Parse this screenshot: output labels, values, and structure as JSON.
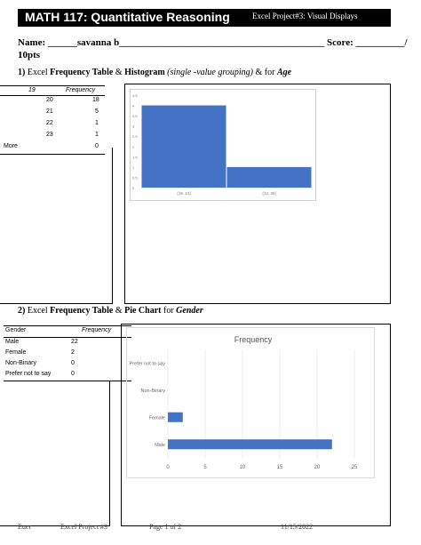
{
  "header": {
    "course": "MATH 117: Quantitative Reasoning",
    "project": "Excel Project#3: Visual Displays"
  },
  "name_line": "Name: ______savanna b__________________________________________ Score: __________/",
  "points_line": "10pts",
  "section1": {
    "number": "1)",
    "text_a": "Excel ",
    "text_b": "Frequency Table",
    "text_c": " & ",
    "text_d": "Histogram",
    "text_e": " (single -value grouping)",
    "text_f": " & for ",
    "text_g": "Age"
  },
  "table1": {
    "col1_header": "19",
    "col2_header": "Frequency",
    "rows": [
      {
        "label": "20",
        "value": "18"
      },
      {
        "label": "21",
        "value": "5"
      },
      {
        "label": "22",
        "value": "1"
      },
      {
        "label": "23",
        "value": "1"
      },
      {
        "label": "More",
        "value": "0"
      }
    ]
  },
  "section2": {
    "number": "2)",
    "text_a": "Excel ",
    "text_b": "Frequency Table",
    "text_c": " & ",
    "text_d": "Pie Chart",
    "text_e": " for ",
    "text_f": "Gender"
  },
  "table2": {
    "col1_header": "Gender",
    "col2_header": "Frequency",
    "rows": [
      {
        "label": "Male",
        "value": "22"
      },
      {
        "label": "Female",
        "value": "2"
      },
      {
        "label": "Non-Binary",
        "value": "0"
      },
      {
        "label": "Prefer not to say",
        "value": "0"
      }
    ]
  },
  "chart_data": [
    {
      "type": "bar",
      "categories": [
        "(19, 13]",
        "(13, 36]"
      ],
      "values": [
        4,
        1
      ],
      "ylim": [
        0,
        4.5
      ],
      "yticks": [
        "0",
        "0.5",
        "1",
        "1.5",
        "2",
        "2.5",
        "3",
        "3.5",
        "4",
        "4.5"
      ],
      "color": "#4472c4"
    },
    {
      "type": "bar",
      "orientation": "horizontal",
      "title": "Frequency",
      "categories": [
        "Male",
        "Female",
        "Non-Binary",
        "Prefer not to say"
      ],
      "values": [
        22,
        2,
        0,
        0
      ],
      "xlim": [
        0,
        25
      ],
      "xticks": [
        "0",
        "5",
        "10",
        "15",
        "20",
        "25"
      ],
      "color": "#4472c4"
    }
  ],
  "footer": {
    "left": "Euer",
    "project": "Excel Project #3",
    "page": "Page 1 of 2",
    "date": "11/15/2022"
  }
}
